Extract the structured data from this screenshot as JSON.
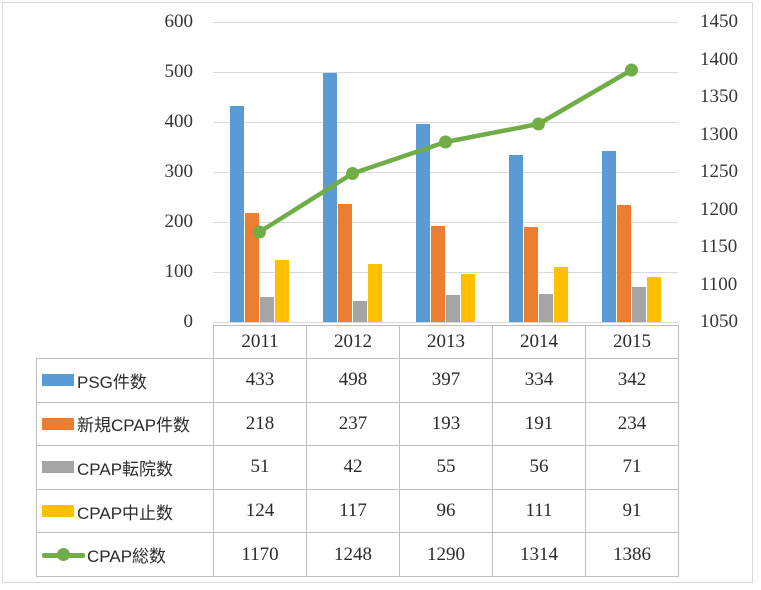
{
  "chart_data": {
    "type": "combo",
    "title": "",
    "categories": [
      "2011",
      "2012",
      "2013",
      "2014",
      "2015"
    ],
    "bar_series": [
      {
        "name": "PSG件数",
        "color": "#5B9BD5",
        "axis": "left",
        "values": [
          433,
          498,
          397,
          334,
          342
        ]
      },
      {
        "name": "新規CPAP件数",
        "color": "#ED7D31",
        "axis": "left",
        "values": [
          218,
          237,
          193,
          191,
          234
        ]
      },
      {
        "name": "CPAP転院数",
        "color": "#A5A5A5",
        "axis": "left",
        "values": [
          51,
          42,
          55,
          56,
          71
        ]
      },
      {
        "name": "CPAP中止数",
        "color": "#FFC000",
        "axis": "left",
        "values": [
          124,
          117,
          96,
          111,
          91
        ]
      }
    ],
    "line_series": [
      {
        "name": "CPAP総数",
        "color": "#70AD47",
        "axis": "right",
        "marker": "circle",
        "values": [
          1170,
          1248,
          1290,
          1314,
          1386
        ]
      }
    ],
    "left_axis": {
      "min": 0,
      "max": 600,
      "step": 100,
      "ticks": [
        600,
        500,
        400,
        300,
        200,
        100,
        0
      ]
    },
    "right_axis": {
      "min": 1050,
      "max": 1450,
      "step": 50,
      "ticks": [
        1450,
        1400,
        1350,
        1300,
        1250,
        1200,
        1150,
        1100,
        1050
      ]
    },
    "grid": true,
    "vertical_gridlines": false,
    "legend_position": "table-left-column"
  },
  "palette": {
    "gridline": "#d9d9d9",
    "table_border": "#bfbfbf",
    "chart_frame_border": "#d9d9d9",
    "text": "#2b2b2b",
    "background": "#ffffff"
  }
}
